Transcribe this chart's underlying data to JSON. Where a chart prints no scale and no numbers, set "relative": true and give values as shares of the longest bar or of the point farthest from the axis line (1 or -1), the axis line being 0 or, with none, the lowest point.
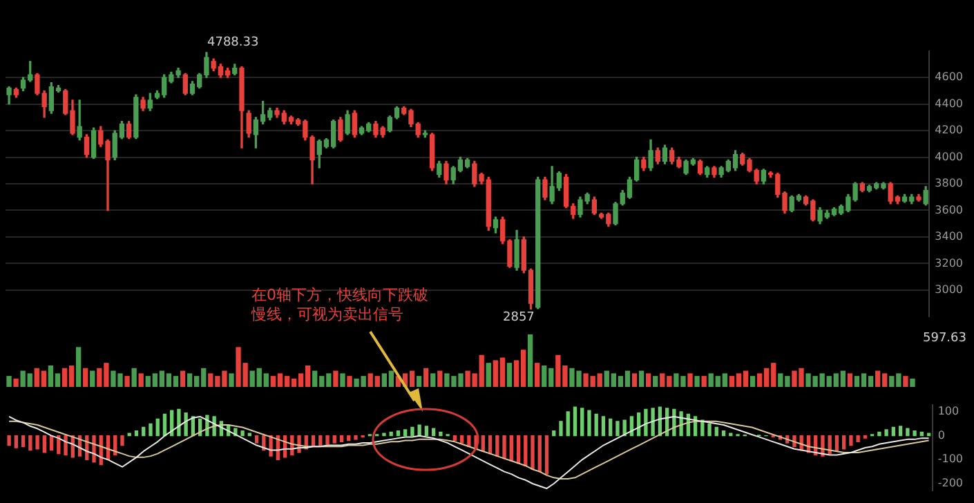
{
  "chart_data": [
    {
      "type": "candlestick",
      "categories": [
        null,
        null,
        null,
        null,
        null,
        null,
        null,
        null,
        null,
        null,
        null,
        null,
        null,
        null,
        null,
        null,
        null,
        null,
        null,
        null,
        null,
        null,
        null,
        null,
        null,
        null,
        null,
        null,
        null,
        null,
        null,
        null,
        null,
        null,
        null,
        null,
        null,
        null,
        null,
        null,
        null,
        null,
        null,
        null,
        null,
        null,
        null,
        null,
        null,
        null,
        null,
        null,
        null,
        null,
        null,
        null,
        null,
        null,
        null,
        null,
        null,
        null,
        null,
        null,
        null,
        null,
        null,
        null,
        null,
        null,
        null,
        null,
        null,
        null,
        null,
        null,
        null,
        null,
        null,
        null,
        null,
        null,
        null,
        null,
        null,
        null,
        null,
        null,
        null,
        null,
        null,
        null,
        null,
        null,
        null,
        null,
        null,
        null,
        null,
        null,
        null,
        null,
        null,
        null,
        null,
        null,
        null,
        null,
        null,
        null,
        null,
        null,
        null,
        null,
        null,
        null,
        null,
        null,
        null,
        null,
        null,
        null,
        null,
        null,
        null,
        null,
        null,
        null,
        null,
        null,
        null
      ],
      "ohlc": [
        [
          4470,
          4530,
          4400,
          4520
        ],
        [
          4510,
          4520,
          4450,
          4470
        ],
        [
          4520,
          4600,
          4500,
          4580
        ],
        [
          4580,
          4720,
          4570,
          4620
        ],
        [
          4620,
          4630,
          4470,
          4480
        ],
        [
          4480,
          4500,
          4300,
          4380
        ],
        [
          4350,
          4560,
          4330,
          4530
        ],
        [
          4500,
          4540,
          4490,
          4520
        ],
        [
          4500,
          4510,
          4320,
          4330
        ],
        [
          4350,
          4430,
          4170,
          4180
        ],
        [
          4150,
          4430,
          4130,
          4230
        ],
        [
          4150,
          4170,
          4000,
          4020
        ],
        [
          4000,
          4220,
          3990,
          4200
        ],
        [
          4200,
          4230,
          4080,
          4100
        ],
        [
          4120,
          4130,
          3600,
          3980
        ],
        [
          4000,
          4200,
          3980,
          4180
        ],
        [
          4150,
          4270,
          4140,
          4250
        ],
        [
          4250,
          4270,
          4140,
          4150
        ],
        [
          4150,
          4470,
          4140,
          4450
        ],
        [
          4430,
          4450,
          4350,
          4370
        ],
        [
          4370,
          4480,
          4350,
          4430
        ],
        [
          4450,
          4500,
          4440,
          4480
        ],
        [
          4470,
          4620,
          4450,
          4600
        ],
        [
          4570,
          4640,
          4560,
          4620
        ],
        [
          4620,
          4670,
          4600,
          4650
        ],
        [
          4620,
          4630,
          4470,
          4480
        ],
        [
          4480,
          4570,
          4470,
          4550
        ],
        [
          4530,
          4630,
          4520,
          4620
        ],
        [
          4620,
          4788.33,
          4600,
          4750
        ],
        [
          4720,
          4740,
          4650,
          4670
        ],
        [
          4680,
          4700,
          4600,
          4620
        ],
        [
          4650,
          4670,
          4600,
          4620
        ],
        [
          4630,
          4700,
          4620,
          4670
        ],
        [
          4670,
          4680,
          4070,
          4350
        ],
        [
          4330,
          4350,
          4150,
          4180
        ],
        [
          4170,
          4300,
          4070,
          4280
        ],
        [
          4270,
          4420,
          4250,
          4320
        ],
        [
          4300,
          4370,
          4280,
          4350
        ],
        [
          4350,
          4370,
          4300,
          4320
        ],
        [
          4330,
          4350,
          4250,
          4270
        ],
        [
          4300,
          4310,
          4250,
          4270
        ],
        [
          4280,
          4290,
          4240,
          4250
        ],
        [
          4270,
          4280,
          4130,
          4150
        ],
        [
          4150,
          4160,
          3800,
          3980
        ],
        [
          4020,
          4130,
          3920,
          4120
        ],
        [
          4080,
          4140,
          4070,
          4130
        ],
        [
          4080,
          4280,
          4070,
          4270
        ],
        [
          4280,
          4300,
          4120,
          4130
        ],
        [
          4180,
          4350,
          4170,
          4320
        ],
        [
          4330,
          4350,
          4150,
          4170
        ],
        [
          4180,
          4230,
          4170,
          4220
        ],
        [
          4200,
          4260,
          4190,
          4250
        ],
        [
          4250,
          4270,
          4150,
          4170
        ],
        [
          4220,
          4230,
          4150,
          4170
        ],
        [
          4200,
          4310,
          4190,
          4300
        ],
        [
          4300,
          4380,
          4290,
          4370
        ],
        [
          4370,
          4380,
          4320,
          4330
        ],
        [
          4350,
          4360,
          4230,
          4250
        ],
        [
          4250,
          4260,
          4150,
          4170
        ],
        [
          4170,
          4200,
          4150,
          4180
        ],
        [
          4170,
          4180,
          3900,
          3920
        ],
        [
          3870,
          3970,
          3850,
          3950
        ],
        [
          3950,
          3970,
          3800,
          3830
        ],
        [
          3830,
          3930,
          3800,
          3920
        ],
        [
          3900,
          4000,
          3890,
          3980
        ],
        [
          3930,
          3990,
          3920,
          3980
        ],
        [
          3950,
          3970,
          3780,
          3800
        ],
        [
          3870,
          3880,
          3800,
          3820
        ],
        [
          3830,
          3850,
          3450,
          3480
        ],
        [
          3470,
          3550,
          3430,
          3530
        ],
        [
          3530,
          3550,
          3350,
          3370
        ],
        [
          3370,
          3380,
          3170,
          3180
        ],
        [
          3170,
          3450,
          3150,
          3380
        ],
        [
          3380,
          3400,
          3130,
          3150
        ],
        [
          3150,
          3160,
          2857,
          2900
        ],
        [
          2870,
          3850,
          2860,
          3830
        ],
        [
          3830,
          3850,
          3680,
          3700
        ],
        [
          3670,
          3930,
          3650,
          3780
        ],
        [
          3770,
          3890,
          3750,
          3880
        ],
        [
          3850,
          3870,
          3620,
          3630
        ],
        [
          3630,
          3650,
          3540,
          3570
        ],
        [
          3570,
          3700,
          3550,
          3680
        ],
        [
          3670,
          3730,
          3650,
          3720
        ],
        [
          3680,
          3700,
          3570,
          3580
        ],
        [
          3570,
          3580,
          3540,
          3550
        ],
        [
          3570,
          3580,
          3480,
          3500
        ],
        [
          3500,
          3660,
          3490,
          3650
        ],
        [
          3650,
          3750,
          3640,
          3730
        ],
        [
          3700,
          3850,
          3690,
          3830
        ],
        [
          3830,
          4000,
          3820,
          3980
        ],
        [
          3980,
          4000,
          3900,
          3920
        ],
        [
          3920,
          4130,
          3900,
          4050
        ],
        [
          4050,
          4070,
          3950,
          3970
        ],
        [
          3970,
          4090,
          3950,
          4070
        ],
        [
          4050,
          4070,
          3950,
          3970
        ],
        [
          3980,
          4000,
          3920,
          3930
        ],
        [
          3880,
          3980,
          3870,
          3970
        ],
        [
          3950,
          3990,
          3940,
          3980
        ],
        [
          3970,
          3980,
          3870,
          3880
        ],
        [
          3870,
          3930,
          3850,
          3920
        ],
        [
          3920,
          3930,
          3850,
          3870
        ],
        [
          3870,
          3930,
          3850,
          3920
        ],
        [
          3900,
          3980,
          3890,
          3970
        ],
        [
          3920,
          4050,
          3900,
          4020
        ],
        [
          4020,
          4030,
          3940,
          3950
        ],
        [
          3980,
          3990,
          3890,
          3900
        ],
        [
          3900,
          3910,
          3800,
          3820
        ],
        [
          3820,
          3910,
          3800,
          3900
        ],
        [
          3880,
          3890,
          3850,
          3870
        ],
        [
          3870,
          3880,
          3700,
          3720
        ],
        [
          3730,
          3740,
          3580,
          3600
        ],
        [
          3600,
          3710,
          3590,
          3700
        ],
        [
          3680,
          3720,
          3670,
          3710
        ],
        [
          3700,
          3710,
          3640,
          3650
        ],
        [
          3670,
          3680,
          3520,
          3530
        ],
        [
          3520,
          3620,
          3500,
          3600
        ],
        [
          3550,
          3600,
          3540,
          3580
        ],
        [
          3570,
          3620,
          3560,
          3610
        ],
        [
          3580,
          3640,
          3570,
          3630
        ],
        [
          3600,
          3720,
          3590,
          3700
        ],
        [
          3680,
          3810,
          3670,
          3800
        ],
        [
          3800,
          3810,
          3740,
          3750
        ],
        [
          3750,
          3790,
          3740,
          3780
        ],
        [
          3770,
          3810,
          3760,
          3800
        ],
        [
          3770,
          3810,
          3760,
          3800
        ],
        [
          3800,
          3810,
          3650,
          3670
        ],
        [
          3700,
          3710,
          3650,
          3670
        ],
        [
          3670,
          3720,
          3660,
          3700
        ],
        [
          3670,
          3720,
          3650,
          3700
        ],
        [
          3700,
          3720,
          3670,
          3680
        ],
        [
          3650,
          3780,
          3640,
          3750
        ]
      ],
      "colors": [
        "#4a9e52",
        "#e8413c",
        "#4a9e52",
        "#4a9e52",
        "#e8413c",
        "#e8413c",
        "#4a9e52",
        "#4a9e52",
        "#e8413c",
        "#e8413c",
        "#4a9e52",
        "#e8413c",
        "#4a9e52",
        "#e8413c",
        "#e8413c",
        "#4a9e52",
        "#4a9e52",
        "#e8413c",
        "#4a9e52",
        "#e8413c",
        "#4a9e52",
        "#4a9e52",
        "#4a9e52",
        "#4a9e52",
        "#4a9e52",
        "#e8413c",
        "#4a9e52",
        "#4a9e52",
        "#4a9e52",
        "#e8413c",
        "#e8413c",
        "#e8413c",
        "#4a9e52",
        "#e8413c",
        "#e8413c",
        "#4a9e52",
        "#4a9e52",
        "#4a9e52",
        "#e8413c",
        "#e8413c",
        "#e8413c",
        "#e8413c",
        "#e8413c",
        "#e8413c",
        "#4a9e52",
        "#4a9e52",
        "#4a9e52",
        "#e8413c",
        "#4a9e52",
        "#e8413c",
        "#4a9e52",
        "#4a9e52",
        "#e8413c",
        "#e8413c",
        "#4a9e52",
        "#4a9e52",
        "#e8413c",
        "#e8413c",
        "#e8413c",
        "#4a9e52",
        "#e8413c",
        "#4a9e52",
        "#e8413c",
        "#4a9e52",
        "#4a9e52",
        "#4a9e52",
        "#e8413c",
        "#e8413c",
        "#e8413c",
        "#4a9e52",
        "#e8413c",
        "#e8413c",
        "#4a9e52",
        "#e8413c",
        "#e8413c",
        "#4a9e52",
        "#e8413c",
        "#4a9e52",
        "#4a9e52",
        "#e8413c",
        "#e8413c",
        "#4a9e52",
        "#4a9e52",
        "#e8413c",
        "#e8413c",
        "#e8413c",
        "#4a9e52",
        "#4a9e52",
        "#4a9e52",
        "#4a9e52",
        "#e8413c",
        "#4a9e52",
        "#e8413c",
        "#4a9e52",
        "#e8413c",
        "#e8413c",
        "#4a9e52",
        "#4a9e52",
        "#e8413c",
        "#4a9e52",
        "#e8413c",
        "#4a9e52",
        "#4a9e52",
        "#4a9e52",
        "#e8413c",
        "#e8413c",
        "#e8413c",
        "#4a9e52",
        "#e8413c",
        "#e8413c",
        "#e8413c",
        "#4a9e52",
        "#4a9e52",
        "#e8413c",
        "#e8413c",
        "#4a9e52",
        "#4a9e52",
        "#4a9e52",
        "#4a9e52",
        "#4a9e52",
        "#4a9e52",
        "#e8413c",
        "#4a9e52",
        "#4a9e52",
        "#4a9e52",
        "#e8413c",
        "#e8413c",
        "#4a9e52",
        "#4a9e52",
        "#e8413c",
        "#4a9e52"
      ],
      "ylim": [
        2800,
        4800
      ],
      "yticks": [
        3000,
        3200,
        3400,
        3600,
        3800,
        4000,
        4200,
        4400,
        4600
      ],
      "grid": "y",
      "tick_labels": "y",
      "annotations": [
        "4788.33",
        "2857",
        "在0轴下方，快线向下跌破慢线，可视为卖出信号"
      ]
    },
    {
      "type": "bar",
      "relative": true,
      "tick_labels": false,
      "categories": [
        null,
        null,
        null,
        null,
        null,
        null,
        null,
        null,
        null,
        null,
        null,
        null,
        null,
        null,
        null,
        null,
        null,
        null,
        null,
        null,
        null,
        null,
        null,
        null,
        null,
        null,
        null,
        null,
        null,
        null,
        null,
        null,
        null,
        null,
        null,
        null,
        null,
        null,
        null,
        null,
        null,
        null,
        null,
        null,
        null,
        null,
        null,
        null,
        null,
        null,
        null,
        null,
        null,
        null,
        null,
        null,
        null,
        null,
        null,
        null,
        null,
        null,
        null,
        null,
        null,
        null,
        null,
        null,
        null,
        null,
        null,
        null,
        null,
        null,
        null,
        null,
        null,
        null,
        null,
        null,
        null,
        null,
        null,
        null,
        null,
        null,
        null,
        null,
        null,
        null,
        null,
        null,
        null,
        null,
        null,
        null,
        null,
        null,
        null,
        null,
        null,
        null,
        null,
        null,
        null,
        null,
        null,
        null,
        null,
        null,
        null,
        null,
        null,
        null,
        null,
        null,
        null,
        null,
        null,
        null,
        null,
        null,
        null,
        null,
        null,
        null,
        null,
        null,
        null,
        null,
        null
      ],
      "values": [
        0.2,
        0.15,
        0.3,
        0.25,
        0.35,
        0.3,
        0.4,
        0.25,
        0.35,
        0.4,
        0.75,
        0.35,
        0.3,
        0.35,
        0.45,
        0.3,
        0.25,
        0.2,
        0.35,
        0.25,
        0.2,
        0.25,
        0.3,
        0.25,
        0.2,
        0.3,
        0.25,
        0.2,
        0.35,
        0.25,
        0.2,
        0.3,
        0.25,
        0.75,
        0.45,
        0.3,
        0.35,
        0.25,
        0.2,
        0.25,
        0.2,
        0.15,
        0.25,
        0.4,
        0.3,
        0.2,
        0.25,
        0.3,
        0.25,
        0.2,
        0.15,
        0.2,
        0.25,
        0.2,
        0.25,
        0.3,
        0.2,
        0.25,
        0.3,
        0.2,
        0.35,
        0.25,
        0.3,
        0.25,
        0.2,
        0.25,
        0.3,
        0.25,
        0.6,
        0.45,
        0.5,
        0.55,
        0.45,
        0.5,
        0.7,
        1,
        0.45,
        0.4,
        0.35,
        0.6,
        0.4,
        0.35,
        0.3,
        0.25,
        0.2,
        0.25,
        0.3,
        0.25,
        0.2,
        0.3,
        0.25,
        0.3,
        0.25,
        0.2,
        0.25,
        0.2,
        0.25,
        0.2,
        0.25,
        0.2,
        0.2,
        0.25,
        0.2,
        0.25,
        0.2,
        0.25,
        0.3,
        0.2,
        0.25,
        0.35,
        0.45,
        0.25,
        0.2,
        0.3,
        0.35,
        0.25,
        0.2,
        0.25,
        0.2,
        0.25,
        0.3,
        0.25,
        0.2,
        0.25,
        0.2,
        0.3,
        0.25,
        0.2,
        0.25,
        0.2,
        0.15
      ],
      "colors": [
        "#4a9e52",
        "#e8413c",
        "#4a9e52",
        "#4a9e52",
        "#e8413c",
        "#e8413c",
        "#4a9e52",
        "#4a9e52",
        "#e8413c",
        "#e8413c",
        "#4a9e52",
        "#e8413c",
        "#4a9e52",
        "#e8413c",
        "#e8413c",
        "#4a9e52",
        "#4a9e52",
        "#e8413c",
        "#4a9e52",
        "#e8413c",
        "#4a9e52",
        "#4a9e52",
        "#4a9e52",
        "#4a9e52",
        "#4a9e52",
        "#e8413c",
        "#4a9e52",
        "#4a9e52",
        "#4a9e52",
        "#e8413c",
        "#e8413c",
        "#e8413c",
        "#4a9e52",
        "#e8413c",
        "#e8413c",
        "#4a9e52",
        "#4a9e52",
        "#4a9e52",
        "#e8413c",
        "#e8413c",
        "#e8413c",
        "#e8413c",
        "#e8413c",
        "#e8413c",
        "#4a9e52",
        "#4a9e52",
        "#4a9e52",
        "#e8413c",
        "#4a9e52",
        "#e8413c",
        "#4a9e52",
        "#4a9e52",
        "#e8413c",
        "#e8413c",
        "#4a9e52",
        "#4a9e52",
        "#e8413c",
        "#e8413c",
        "#e8413c",
        "#4a9e52",
        "#e8413c",
        "#4a9e52",
        "#e8413c",
        "#4a9e52",
        "#4a9e52",
        "#4a9e52",
        "#e8413c",
        "#e8413c",
        "#e8413c",
        "#4a9e52",
        "#e8413c",
        "#e8413c",
        "#4a9e52",
        "#e8413c",
        "#e8413c",
        "#4a9e52",
        "#e8413c",
        "#4a9e52",
        "#4a9e52",
        "#e8413c",
        "#e8413c",
        "#4a9e52",
        "#4a9e52",
        "#e8413c",
        "#e8413c",
        "#e8413c",
        "#4a9e52",
        "#4a9e52",
        "#4a9e52",
        "#4a9e52",
        "#e8413c",
        "#4a9e52",
        "#e8413c",
        "#4a9e52",
        "#e8413c",
        "#e8413c",
        "#4a9e52",
        "#4a9e52",
        "#e8413c",
        "#4a9e52",
        "#e8413c",
        "#4a9e52",
        "#4a9e52",
        "#4a9e52",
        "#e8413c",
        "#e8413c",
        "#e8413c",
        "#4a9e52",
        "#e8413c",
        "#e8413c",
        "#e8413c",
        "#4a9e52",
        "#4a9e52",
        "#e8413c",
        "#e8413c",
        "#4a9e52",
        "#4a9e52",
        "#4a9e52",
        "#4a9e52",
        "#4a9e52",
        "#4a9e52",
        "#e8413c",
        "#4a9e52",
        "#4a9e52",
        "#4a9e52",
        "#e8413c",
        "#e8413c",
        "#4a9e52",
        "#4a9e52",
        "#e8413c",
        "#4a9e52"
      ],
      "annotations": [
        "597.63"
      ]
    },
    {
      "type": "bar",
      "tick_labels": "y",
      "ylim": [
        -230,
        130
      ],
      "yticks": [
        100,
        0,
        -100,
        -200
      ],
      "categories": [
        null,
        null,
        null,
        null,
        null,
        null,
        null,
        null,
        null,
        null,
        null,
        null,
        null,
        null,
        null,
        null,
        null,
        null,
        null,
        null,
        null,
        null,
        null,
        null,
        null,
        null,
        null,
        null,
        null,
        null,
        null,
        null,
        null,
        null,
        null,
        null,
        null,
        null,
        null,
        null,
        null,
        null,
        null,
        null,
        null,
        null,
        null,
        null,
        null,
        null,
        null,
        null,
        null,
        null,
        null,
        null,
        null,
        null,
        null,
        null,
        null,
        null,
        null,
        null,
        null,
        null,
        null,
        null,
        null,
        null,
        null,
        null,
        null,
        null,
        null,
        null,
        null,
        null,
        null,
        null,
        null,
        null,
        null,
        null,
        null,
        null,
        null,
        null,
        null,
        null,
        null,
        null,
        null,
        null,
        null,
        null,
        null,
        null,
        null,
        null,
        null,
        null,
        null,
        null,
        null,
        null,
        null,
        null,
        null,
        null,
        null,
        null,
        null,
        null,
        null,
        null,
        null,
        null,
        null,
        null,
        null,
        null,
        null,
        null,
        null,
        null,
        null,
        null,
        null,
        null,
        null
      ],
      "series": [
        {
          "type": "bar",
          "colors": [
            "#e84545",
            "#e84545",
            "#e84545",
            "#e84545",
            "#e84545",
            "#e84545",
            "#e84545",
            "#e84545",
            "#e84545",
            "#e84545",
            "#e84545",
            "#e84545",
            "#e84545",
            "#e84545",
            "#e84545",
            "#e84545",
            "#e84545",
            "#6ccf6c",
            "#6ccf6c",
            "#6ccf6c",
            "#6ccf6c",
            "#6ccf6c",
            "#6ccf6c",
            "#6ccf6c",
            "#6ccf6c",
            "#6ccf6c",
            "#6ccf6c",
            "#6ccf6c",
            "#6ccf6c",
            "#6ccf6c",
            "#6ccf6c",
            "#6ccf6c",
            "#6ccf6c",
            "#6ccf6c",
            "#6ccf6c",
            "#e84545",
            "#e84545",
            "#e84545",
            "#e84545",
            "#e84545",
            "#e84545",
            "#e84545",
            "#e84545",
            "#e84545",
            "#e84545",
            "#e84545",
            "#e84545",
            "#e84545",
            "#e84545",
            "#e84545",
            "#e84545",
            "#6ccf6c",
            "#6ccf6c",
            "#6ccf6c",
            "#6ccf6c",
            "#6ccf6c",
            "#6ccf6c",
            "#6ccf6c",
            "#6ccf6c",
            "#6ccf6c",
            "#6ccf6c",
            "#6ccf6c",
            "#6ccf6c",
            "#e84545",
            "#e84545",
            "#e84545",
            "#e84545",
            "#e84545",
            "#e84545",
            "#e84545",
            "#e84545",
            "#e84545",
            "#e84545",
            "#e84545",
            "#e84545",
            "#e84545",
            "#e84545",
            "#6ccf6c",
            "#6ccf6c",
            "#6ccf6c",
            "#6ccf6c",
            "#6ccf6c",
            "#6ccf6c",
            "#6ccf6c",
            "#6ccf6c",
            "#6ccf6c",
            "#6ccf6c",
            "#6ccf6c",
            "#6ccf6c",
            "#6ccf6c",
            "#6ccf6c",
            "#6ccf6c",
            "#6ccf6c",
            "#6ccf6c",
            "#6ccf6c",
            "#6ccf6c",
            "#6ccf6c",
            "#6ccf6c",
            "#6ccf6c",
            "#6ccf6c",
            "#6ccf6c",
            "#6ccf6c",
            "#6ccf6c",
            "#6ccf6c",
            "#6ccf6c",
            "#6ccf6c",
            "#6ccf6c",
            "#6ccf6c",
            "#e84545",
            "#e84545",
            "#e84545",
            "#e84545",
            "#e84545",
            "#e84545",
            "#e84545",
            "#e84545",
            "#e84545",
            "#e84545",
            "#e84545",
            "#e84545",
            "#e84545",
            "#e84545",
            "#6ccf6c",
            "#6ccf6c",
            "#6ccf6c",
            "#6ccf6c",
            "#6ccf6c",
            "#6ccf6c",
            "#6ccf6c",
            "#6ccf6c",
            "#6ccf6c"
          ],
          "values": [
            -40,
            -50,
            -45,
            -60,
            -55,
            -70,
            -60,
            -75,
            -80,
            -90,
            -85,
            -100,
            -110,
            -120,
            -100,
            -80,
            -40,
            10,
            20,
            35,
            50,
            70,
            90,
            105,
            110,
            95,
            80,
            70,
            85,
            80,
            60,
            45,
            30,
            20,
            10,
            -30,
            -60,
            -85,
            -100,
            -90,
            -80,
            -70,
            -55,
            -45,
            -40,
            -35,
            -30,
            -25,
            -20,
            -15,
            -5,
            5,
            5,
            10,
            15,
            20,
            25,
            35,
            45,
            40,
            30,
            15,
            5,
            -20,
            -30,
            -45,
            -55,
            -65,
            -75,
            -85,
            -95,
            -105,
            -115,
            -125,
            -140,
            -150,
            -160,
            20,
            60,
            100,
            120,
            115,
            105,
            90,
            80,
            70,
            60,
            65,
            80,
            95,
            110,
            115,
            120,
            115,
            110,
            100,
            90,
            80,
            65,
            50,
            35,
            20,
            10,
            5,
            3,
            null,
            2,
            0,
            -5,
            -15,
            -30,
            -45,
            -60,
            -70,
            -80,
            -85,
            -75,
            -65,
            -55,
            -40,
            -25,
            -10,
            5,
            15,
            25,
            35,
            40,
            30,
            20,
            15,
            10
          ]
        },
        {
          "type": "line",
          "color": "#e8e8e8",
          "values": [
            80,
            65,
            55,
            40,
            30,
            15,
            0,
            -10,
            -25,
            -35,
            -50,
            -65,
            -75,
            -90,
            -100,
            -115,
            -130,
            -110,
            -90,
            -65,
            -45,
            -25,
            0,
            20,
            40,
            60,
            75,
            80,
            65,
            50,
            35,
            20,
            5,
            -10,
            -25,
            -40,
            -50,
            -60,
            -60,
            -55,
            -55,
            -50,
            -50,
            -45,
            -45,
            -40,
            -40,
            -40,
            -35,
            -35,
            -30,
            -30,
            -25,
            -20,
            -15,
            -10,
            -5,
            -5,
            0,
            -5,
            -10,
            -20,
            -30,
            -45,
            -60,
            -75,
            -90,
            -105,
            -120,
            -135,
            -150,
            -160,
            -175,
            -185,
            -200,
            -210,
            -220,
            -200,
            -175,
            -150,
            -125,
            -100,
            -80,
            -60,
            -40,
            -25,
            -10,
            5,
            20,
            35,
            50,
            60,
            70,
            75,
            80,
            75,
            70,
            65,
            60,
            55,
            50,
            45,
            35,
            25,
            15,
            5,
            -5,
            -15,
            -25,
            -35,
            -45,
            -55,
            -60,
            -65,
            -70,
            -75,
            -80,
            -80,
            -75,
            -70,
            -60,
            -50,
            -45,
            -35,
            -30,
            -25,
            -20,
            -15,
            -15,
            -10,
            -10
          ]
        },
        {
          "type": "line",
          "color": "#d8c89a",
          "values": [
            60,
            60,
            55,
            50,
            45,
            35,
            25,
            15,
            5,
            -5,
            -15,
            -25,
            -35,
            -45,
            -55,
            -65,
            -75,
            -85,
            -90,
            -90,
            -85,
            -75,
            -60,
            -45,
            -30,
            -15,
            0,
            15,
            30,
            40,
            45,
            45,
            40,
            35,
            25,
            15,
            5,
            -5,
            -15,
            -25,
            -35,
            -40,
            -45,
            -45,
            -45,
            -45,
            -45,
            -45,
            -40,
            -40,
            -40,
            -35,
            -35,
            -30,
            -25,
            -25,
            -20,
            -20,
            -15,
            -15,
            -15,
            -15,
            -20,
            -25,
            -35,
            -45,
            -55,
            -65,
            -75,
            -85,
            -95,
            -105,
            -115,
            -125,
            -140,
            -150,
            -165,
            -175,
            -180,
            -180,
            -175,
            -160,
            -145,
            -130,
            -115,
            -100,
            -85,
            -70,
            -55,
            -40,
            -25,
            -10,
            5,
            20,
            35,
            45,
            55,
            60,
            60,
            60,
            60,
            55,
            50,
            45,
            40,
            35,
            25,
            15,
            5,
            -5,
            -15,
            -25,
            -35,
            -45,
            -50,
            -55,
            -60,
            -65,
            -70,
            -70,
            -70,
            -65,
            -60,
            -55,
            -50,
            -45,
            -40,
            -35,
            -30,
            -25,
            -20
          ]
        }
      ]
    }
  ]
}
